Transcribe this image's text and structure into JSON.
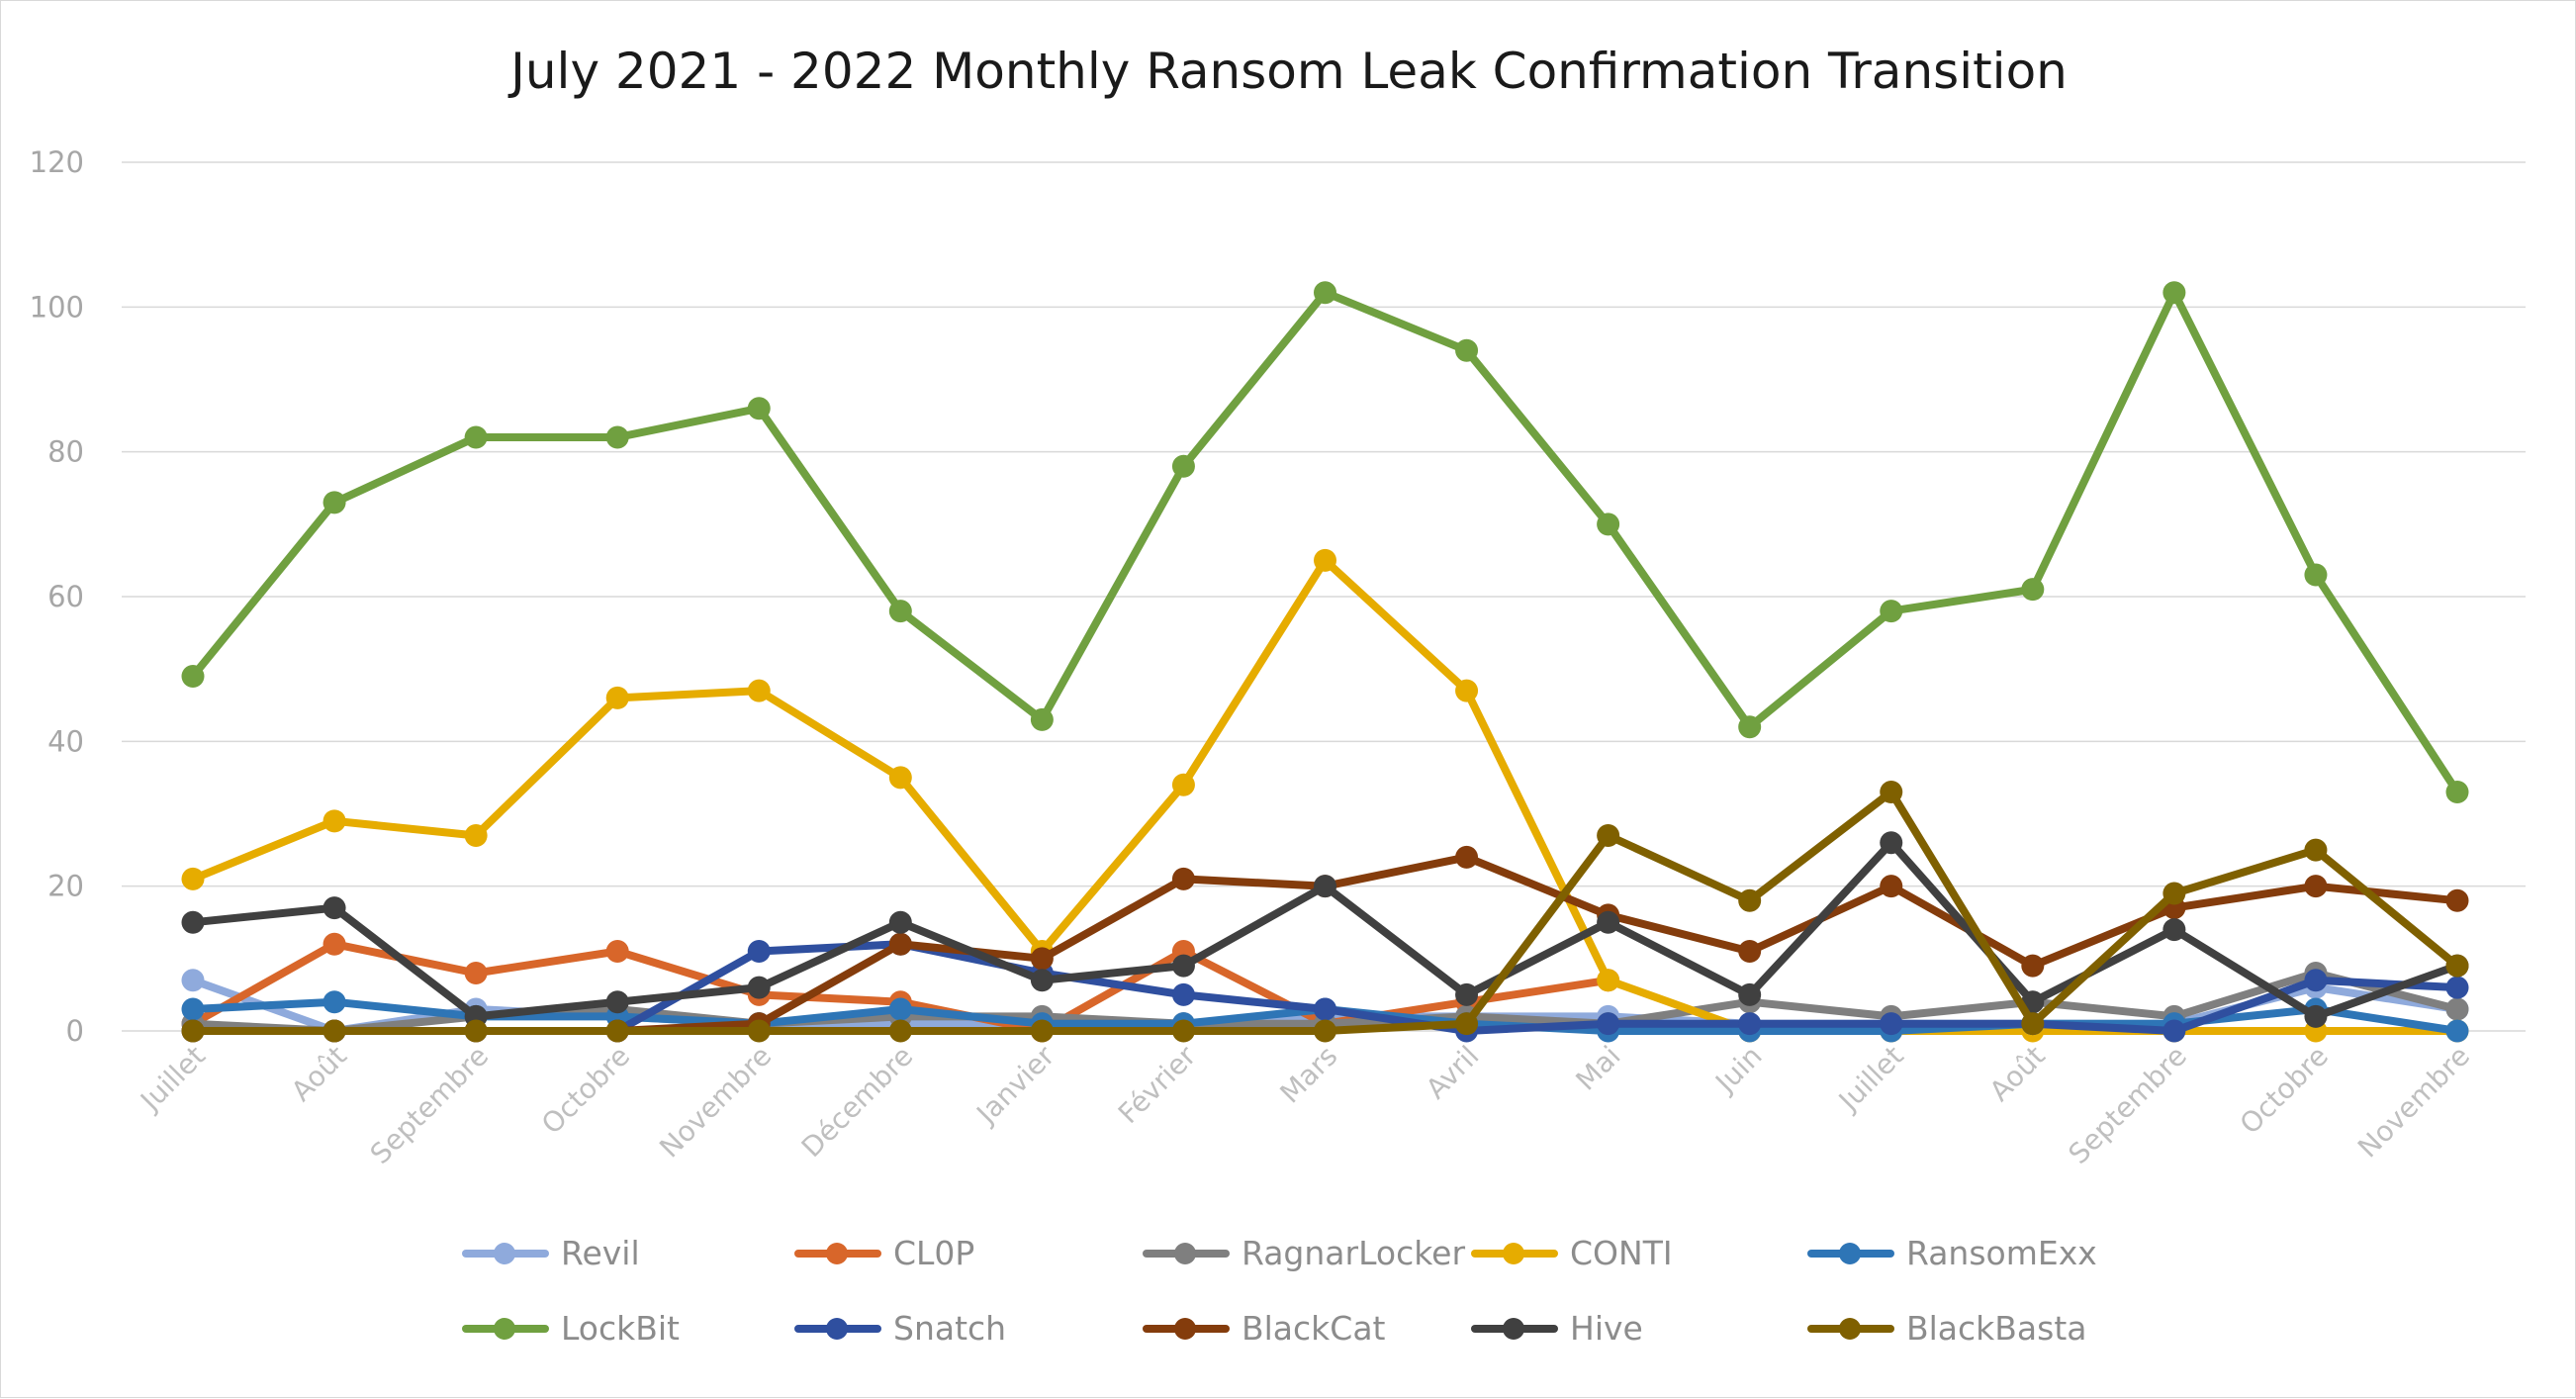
{
  "chart_data": {
    "type": "line",
    "title": "July 2021 - 2022 Monthly Ransom Leak Confirmation Transition",
    "xlabel": "",
    "ylabel": "",
    "ylim": [
      0,
      120
    ],
    "yticks": [
      0,
      20,
      40,
      60,
      80,
      100,
      120
    ],
    "grid": true,
    "legend_position": "bottom",
    "categories": [
      "Juillet",
      "Août",
      "Septembre",
      "Octobre",
      "Novembre",
      "Décembre",
      "Janvier",
      "Février",
      "Mars",
      "Avril",
      "Mai",
      "Juin",
      "Juillet",
      "Août",
      "Septembre",
      "Octobre",
      "Novembre"
    ],
    "series": [
      {
        "name": "Revil",
        "color": "#8faadc",
        "values": [
          7,
          0,
          3,
          2,
          1,
          1,
          1,
          1,
          2,
          2,
          2,
          1,
          1,
          1,
          1,
          6,
          3
        ]
      },
      {
        "name": "CL0P",
        "color": "#d8662a",
        "values": [
          1,
          12,
          8,
          11,
          5,
          4,
          0,
          11,
          1,
          4,
          7,
          null,
          null,
          null,
          null,
          null,
          null
        ]
      },
      {
        "name": "RagnarLocker",
        "color": "#7f7f7f",
        "values": [
          1,
          0,
          2,
          3,
          1,
          2,
          2,
          1,
          1,
          2,
          1,
          4,
          2,
          4,
          2,
          8,
          3
        ]
      },
      {
        "name": "CONTI",
        "color": "#e6ac00",
        "values": [
          21,
          29,
          27,
          46,
          47,
          35,
          11,
          34,
          65,
          47,
          7,
          0,
          0,
          0,
          0,
          0,
          0
        ]
      },
      {
        "name": "RansomExx",
        "color": "#2e75b6",
        "values": [
          3,
          4,
          2,
          2,
          1,
          3,
          1,
          1,
          3,
          1,
          0,
          0,
          0,
          1,
          1,
          3,
          0
        ]
      },
      {
        "name": "LockBit",
        "color": "#70a040",
        "values": [
          49,
          73,
          82,
          82,
          86,
          58,
          43,
          78,
          102,
          94,
          70,
          42,
          58,
          61,
          102,
          63,
          33
        ]
      },
      {
        "name": "Snatch",
        "color": "#2f4f9f",
        "values": [
          0,
          0,
          0,
          0,
          11,
          12,
          8,
          5,
          3,
          0,
          1,
          1,
          1,
          1,
          0,
          7,
          6
        ]
      },
      {
        "name": "BlackCat",
        "color": "#843c0c",
        "values": [
          0,
          0,
          0,
          0,
          1,
          12,
          10,
          21,
          20,
          24,
          16,
          11,
          20,
          9,
          17,
          20,
          18
        ]
      },
      {
        "name": "Hive",
        "color": "#404040",
        "values": [
          15,
          17,
          2,
          4,
          6,
          15,
          7,
          9,
          20,
          5,
          15,
          5,
          26,
          4,
          14,
          2,
          9
        ]
      },
      {
        "name": "BlackBasta",
        "color": "#7f6000",
        "values": [
          0,
          0,
          0,
          0,
          0,
          0,
          0,
          0,
          0,
          1,
          27,
          18,
          33,
          1,
          19,
          25,
          9
        ]
      }
    ]
  }
}
